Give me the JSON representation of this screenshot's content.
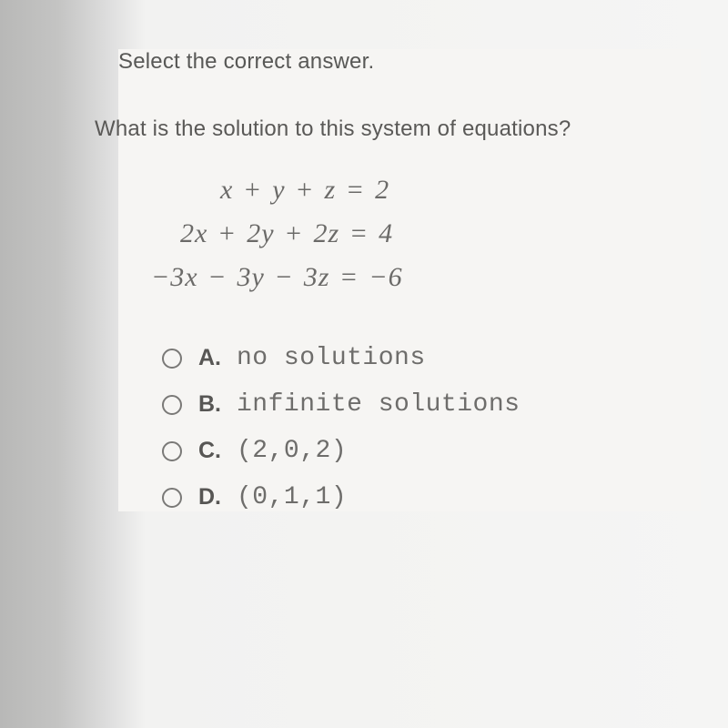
{
  "instruction": "Select the correct answer.",
  "question": "What is the solution to this system of equations?",
  "equations": {
    "eq1_html": "x <span class='sign'>+</span> y <span class='sign'>+</span> z <span class='sign'>=</span> 2",
    "eq2_html": "2x <span class='sign'>+</span> 2y <span class='sign'>+</span> 2z <span class='sign'>=</span> 4",
    "eq3_html": "−3x <span class='sign'>−</span> 3y <span class='sign'>−</span> 3z <span class='sign'>=</span> −6"
  },
  "options": [
    {
      "letter": "A.",
      "text": "no solutions"
    },
    {
      "letter": "B.",
      "text": "infinite solutions"
    },
    {
      "letter": "C.",
      "text": "(2,0,2)"
    },
    {
      "letter": "D.",
      "text": "(0,1,1)"
    }
  ],
  "colors": {
    "text_primary": "#585856",
    "text_equation": "#6b6a68",
    "text_option": "#6e6d6b",
    "radio_border": "#7a7977",
    "page_bg": "#f6f5f3"
  },
  "typography": {
    "body_fontsize": 24,
    "equation_fontsize": 30,
    "option_label_fontsize": 25,
    "option_text_fontsize": 28
  }
}
